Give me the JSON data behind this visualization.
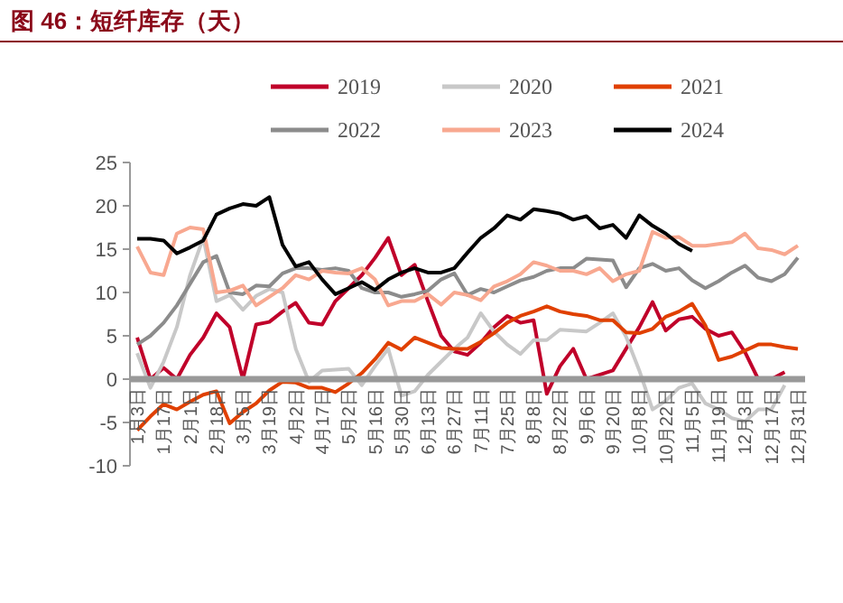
{
  "chart_data": {
    "type": "line",
    "title": "图 46：短纤库存（天）",
    "categories": [
      "1月3日",
      null,
      "1月17日",
      null,
      "2月1日",
      null,
      "2月18日",
      null,
      "3月5日",
      null,
      "3月19日",
      null,
      "4月2日",
      null,
      "4月17日",
      null,
      "5月2日",
      null,
      "5月16日",
      null,
      "5月30日",
      null,
      "6月13日",
      null,
      "6月27日",
      null,
      "7月11日",
      null,
      "7月25日",
      null,
      "8月8日",
      null,
      "8月22日",
      null,
      "9月6日",
      null,
      "9月20日",
      null,
      "10月8日",
      null,
      "10月22日",
      null,
      "11月5日",
      null,
      "11月19日",
      null,
      "12月3日",
      null,
      "12月17日",
      null,
      "12月31日"
    ],
    "series": [
      {
        "name": "2019",
        "color": "#c0002a",
        "values": [
          4.8,
          0,
          1.3,
          0,
          2.8,
          4.8,
          7.6,
          6,
          0,
          6.3,
          6.6,
          7.8,
          8.8,
          6.5,
          6.3,
          9,
          10.5,
          12,
          14,
          16.3,
          12,
          13.2,
          9,
          5,
          3.2,
          2.8,
          4.2,
          6,
          7.3,
          6.5,
          6.8,
          -1.7,
          1.5,
          3.5,
          0,
          0.5,
          1,
          3.5,
          6,
          8.9,
          5.6,
          6.9,
          7.2,
          5.8,
          5,
          5.4,
          3.1,
          0,
          0,
          0.8,
          null
        ]
      },
      {
        "name": "2020",
        "color": "#c8c8c8",
        "values": [
          3,
          -1,
          2,
          6,
          12,
          16.3,
          9,
          9.7,
          8,
          9.6,
          10.4,
          10,
          3.5,
          -0.3,
          1,
          1.1,
          1.2,
          -0.7,
          1.5,
          3.5,
          -1.9,
          -1.4,
          0.5,
          2,
          3.5,
          4.8,
          7.6,
          5.5,
          4,
          2.9,
          4.5,
          4.5,
          5.7,
          5.6,
          5.5,
          6.5,
          7.6,
          4.9,
          1,
          -3.5,
          -2.5,
          -1,
          -0.5,
          -2.8,
          -3.5,
          -4.5,
          -4.9,
          -3.5,
          -3.5,
          -0.7,
          null
        ]
      },
      {
        "name": "2021",
        "color": "#e04000",
        "values": [
          -5.9,
          -4.3,
          -2.9,
          -3.5,
          -2.6,
          -1.8,
          -1.4,
          -5.1,
          -3.8,
          -2.8,
          -1.3,
          -0.3,
          -0.4,
          -1,
          -1,
          -1.5,
          -0.5,
          0.7,
          2.3,
          4.2,
          3.4,
          4.8,
          4.2,
          3.6,
          3.5,
          3.5,
          4.3,
          5.3,
          6.5,
          7.3,
          7.8,
          8.4,
          7.8,
          7.5,
          7.3,
          6.8,
          6.8,
          5.4,
          5.3,
          5.8,
          7.2,
          7.8,
          8.7,
          6.2,
          2.2,
          2.6,
          3.3,
          4,
          4,
          3.7,
          3.5
        ]
      },
      {
        "name": "2022",
        "color": "#8c8c8c",
        "values": [
          4,
          5,
          6.5,
          8.5,
          11,
          13.5,
          14.2,
          10,
          9.8,
          10.8,
          10.7,
          12.2,
          12.8,
          12.8,
          12.6,
          12.8,
          12.5,
          10.5,
          10,
          10,
          9.5,
          9.8,
          10.2,
          11.5,
          12.2,
          9.7,
          10.4,
          10,
          10.7,
          11.4,
          11.8,
          12.5,
          12.8,
          12.8,
          13.9,
          13.8,
          13.7,
          10.6,
          12.8,
          13.3,
          12.5,
          12.8,
          11.4,
          10.5,
          11.3,
          12.3,
          13.1,
          11.7,
          11.3,
          12.1,
          14
        ]
      },
      {
        "name": "2023",
        "color": "#f8a890",
        "values": [
          15.3,
          12.3,
          12,
          16.8,
          17.5,
          17.3,
          10,
          10.2,
          10.8,
          8.5,
          9.5,
          10.5,
          12,
          11.5,
          12.5,
          12.3,
          12.2,
          12.8,
          11.5,
          8.5,
          9,
          9,
          9.8,
          8.6,
          10,
          9.7,
          9.1,
          10.7,
          11.3,
          12.1,
          13.5,
          13.1,
          12.5,
          12.5,
          12.1,
          12.8,
          11.3,
          12.1,
          12.5,
          17,
          16.3,
          16.4,
          15.4,
          15.4,
          15.6,
          15.8,
          16.8,
          15.1,
          14.9,
          14.4,
          15.4
        ]
      },
      {
        "name": "2024",
        "color": "#000000",
        "values": [
          16.2,
          16.2,
          16,
          14.5,
          15.2,
          16,
          19,
          19.7,
          20.2,
          20,
          21,
          15.5,
          13,
          13.5,
          11.5,
          9.8,
          10.5,
          11.2,
          10.3,
          11.5,
          12.3,
          12.8,
          12.3,
          12.3,
          12.8,
          14.6,
          16.3,
          17.4,
          18.9,
          18.4,
          19.6,
          19.4,
          19.1,
          18.4,
          18.8,
          17.4,
          17.8,
          16.3,
          18.9,
          17.7,
          16.8,
          15.6,
          14.8,
          null,
          null,
          null,
          null,
          null,
          null,
          null,
          null
        ]
      }
    ],
    "ylim": [
      -10,
      25
    ],
    "yticks": [
      -10,
      -5,
      0,
      5,
      10,
      15,
      20,
      25
    ],
    "legend": "top",
    "grid": false,
    "marker": "none",
    "line_style": "solid"
  }
}
